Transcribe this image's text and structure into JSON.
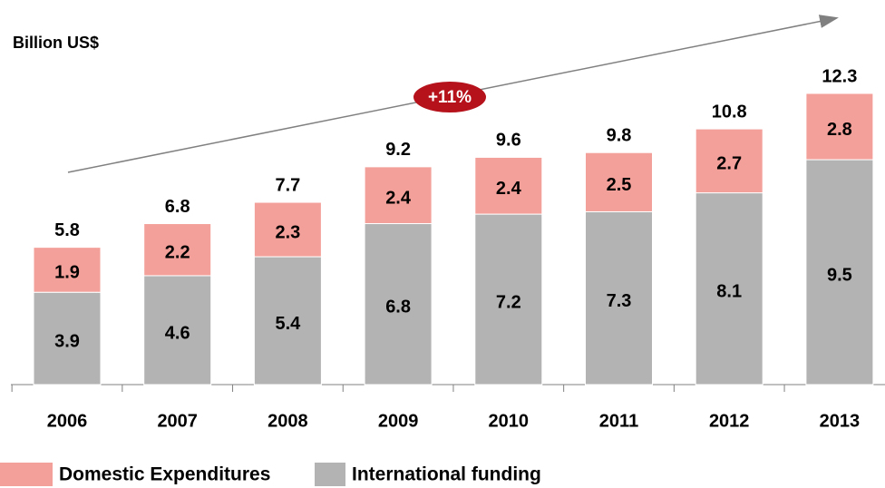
{
  "chart_data": {
    "type": "stacked_bar",
    "y_label": "Billion US$",
    "annotation": "+11%",
    "categories": [
      "2006",
      "2007",
      "2008",
      "2009",
      "2010",
      "2011",
      "2012",
      "2013"
    ],
    "series": [
      {
        "name": "International funding",
        "color": "#b3b3b3",
        "values": [
          3.9,
          4.6,
          5.4,
          6.8,
          7.2,
          7.3,
          8.1,
          9.5
        ]
      },
      {
        "name": "Domestic Expenditures",
        "color": "#f4a09a",
        "values": [
          1.9,
          2.2,
          2.3,
          2.4,
          2.4,
          2.5,
          2.7,
          2.8
        ]
      }
    ],
    "totals": [
      5.8,
      6.8,
      7.7,
      9.2,
      9.6,
      9.8,
      10.8,
      12.3
    ]
  }
}
